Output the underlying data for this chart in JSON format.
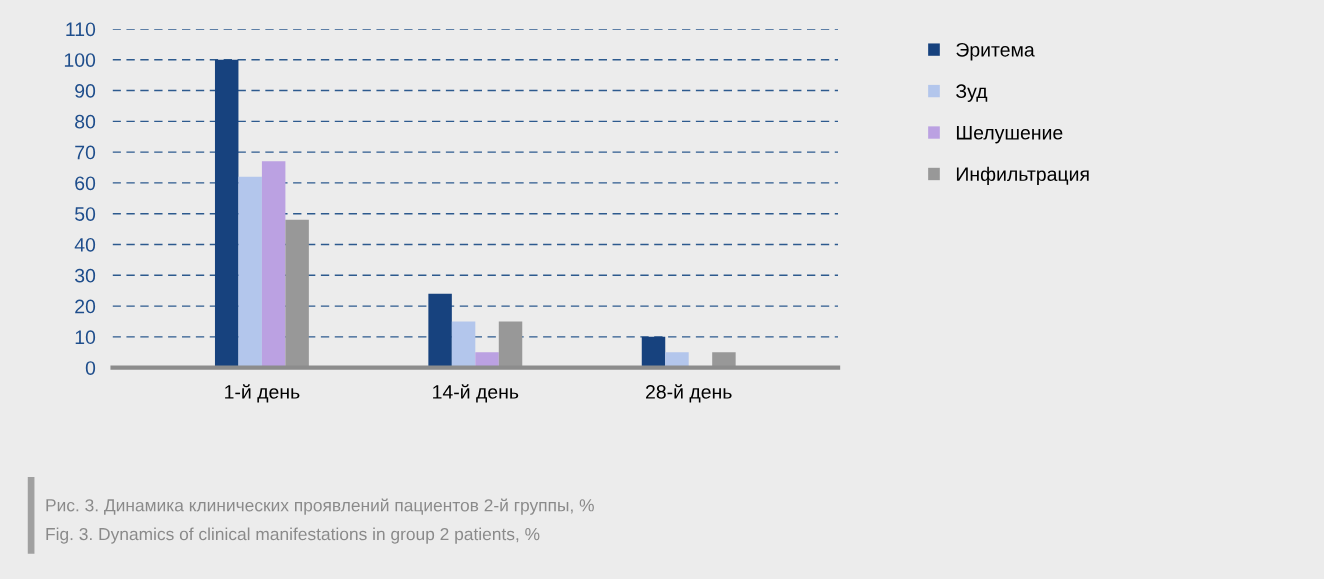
{
  "chart_data": {
    "type": "bar",
    "categories": [
      "1-й день",
      "14-й день",
      "28-й день"
    ],
    "series": [
      {
        "name": "Эритема",
        "color": "#17427e",
        "values": [
          100,
          24,
          10
        ]
      },
      {
        "name": "Зуд",
        "color": "#b3c6ec",
        "values": [
          62,
          15,
          5
        ]
      },
      {
        "name": "Шелушение",
        "color": "#bba1e2",
        "values": [
          67,
          5,
          0
        ]
      },
      {
        "name": "Инфильтрация",
        "color": "#989898",
        "values": [
          48,
          15,
          5
        ]
      }
    ],
    "ylim": [
      0,
      110
    ],
    "yticks": [
      0,
      10,
      20,
      30,
      40,
      50,
      60,
      70,
      80,
      90,
      100,
      110
    ],
    "grid": "y",
    "legend": "right",
    "annotations": [
      "Рис. 3. Динамика клинических проявлений пациентов 2-й группы, %",
      "Fig. 3. Dynamics of clinical manifestations in group 2 patients, %"
    ]
  }
}
